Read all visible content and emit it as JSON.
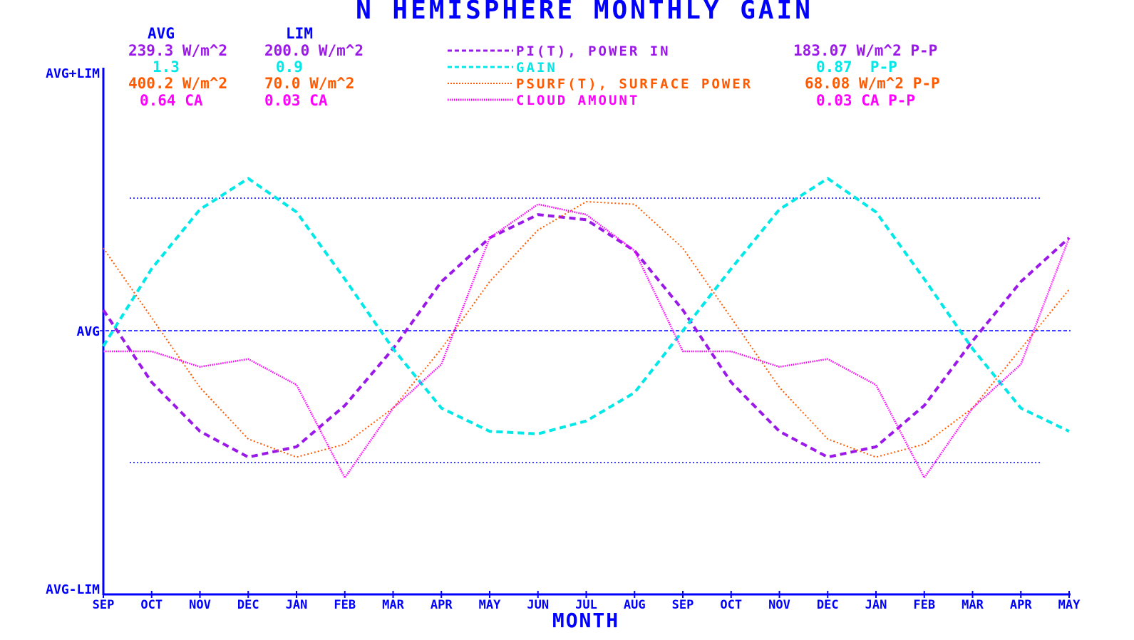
{
  "colors": {
    "axis": "#0000ff",
    "power_in": "#9a18e8",
    "gain": "#00e8e8",
    "surface_power": "#ff5a00",
    "cloud": "#ff00ff"
  },
  "header": {
    "title": "N HEMISPHERE MONTHLY GAIN",
    "avg_heading": "AVG",
    "lim_heading": "LIM"
  },
  "stats": {
    "power_in": {
      "avg": "239.3 W/m^2",
      "lim": "200.0 W/m^2",
      "pp": "183.07 W/m^2 P-P"
    },
    "gain": {
      "avg": "1.3",
      "lim": "0.9",
      "pp": "0.87  P-P"
    },
    "surface_power": {
      "avg": "400.2 W/m^2",
      "lim": "70.0 W/m^2",
      "pp": "68.08 W/m^2 P-P"
    },
    "cloud": {
      "avg": "0.64 CA",
      "lim": "0.03 CA",
      "pp": "0.03 CA P-P"
    }
  },
  "chart_data": {
    "type": "line",
    "title": "N HEMISPHERE MONTHLY GAIN",
    "xlabel": "MONTH",
    "ylabel": "",
    "y_tick_labels": [
      "AVG+LIM",
      "AVG",
      "AVG-LIM"
    ],
    "ylim": [
      -1,
      1
    ],
    "grid": "dotted reference lines at about +0.5 and -0.5; dashed line at AVG",
    "legend_position": "top-center",
    "categories": [
      "SEP",
      "OCT",
      "NOV",
      "DEC",
      "JAN",
      "FEB",
      "MAR",
      "APR",
      "MAY",
      "JUN",
      "JUL",
      "AUG",
      "SEP",
      "OCT",
      "NOV",
      "DEC",
      "JAN",
      "FEB",
      "MAR",
      "APR",
      "MAY"
    ],
    "series": [
      {
        "key": "power_in",
        "name": "PI(T), POWER IN",
        "style": "dashed",
        "values": [
          0.08,
          -0.2,
          -0.39,
          -0.49,
          -0.45,
          -0.29,
          -0.07,
          0.19,
          0.36,
          0.45,
          0.43,
          0.31,
          0.08,
          -0.2,
          -0.39,
          -0.49,
          -0.45,
          -0.29,
          -0.04,
          0.19,
          0.36
        ]
      },
      {
        "key": "gain",
        "name": "GAIN",
        "style": "dashed",
        "values": [
          -0.06,
          0.24,
          0.47,
          0.59,
          0.46,
          0.2,
          -0.07,
          -0.3,
          -0.39,
          -0.4,
          -0.35,
          -0.24,
          0.0,
          0.24,
          0.47,
          0.59,
          0.46,
          0.2,
          -0.07,
          -0.3,
          -0.39
        ]
      },
      {
        "key": "surface_power",
        "name": "PSURF(T), SURFACE POWER",
        "style": "dotted",
        "values": [
          0.32,
          0.05,
          -0.22,
          -0.42,
          -0.49,
          -0.44,
          -0.3,
          -0.07,
          0.19,
          0.39,
          0.5,
          0.49,
          0.32,
          0.05,
          -0.22,
          -0.42,
          -0.49,
          -0.44,
          -0.3,
          -0.07,
          0.16
        ]
      },
      {
        "key": "cloud",
        "name": "CLOUD AMOUNT",
        "style": "dense-dotted",
        "values": [
          -0.08,
          -0.08,
          -0.14,
          -0.11,
          -0.21,
          -0.57,
          -0.3,
          -0.13,
          0.36,
          0.49,
          0.45,
          0.31,
          -0.08,
          -0.08,
          -0.14,
          -0.11,
          -0.21,
          -0.57,
          -0.3,
          -0.13,
          0.36
        ]
      }
    ]
  }
}
